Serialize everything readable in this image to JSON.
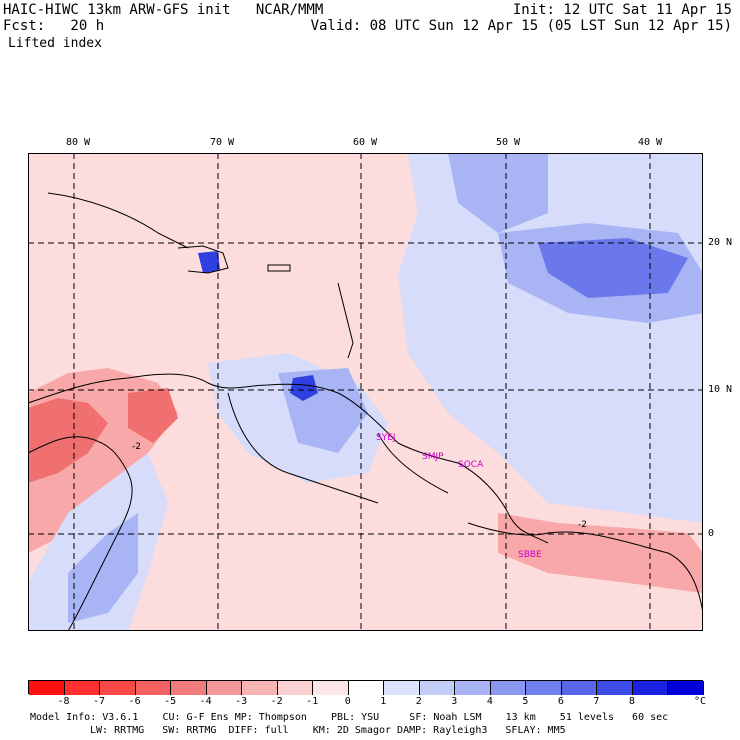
{
  "header": {
    "model_line": "HAIC-HIWC 13km ARW-GFS init   NCAR/MMM",
    "fcst_line": "Fcst:   20 h",
    "field_name": "Lifted index",
    "init_line": "Init: 12 UTC Sat 11 Apr 15",
    "valid_line": "Valid: 08 UTC Sun 12 Apr 15 (05 LST Sun 12 Apr 15)"
  },
  "map": {
    "lon_labels": [
      "80 W",
      "70 W",
      "60 W",
      "50 W",
      "40 W"
    ],
    "lat_labels": [
      "20 N",
      "10 N",
      "0"
    ],
    "stations": [
      "SYEJ",
      "SMJP",
      "SOCA",
      "SBBE"
    ],
    "contour_labels": [
      "-2",
      "-2"
    ],
    "colors": {
      "warm_light": "#fcdcdc",
      "warm_mid": "#f8a8a8",
      "warm_strong": "#f07070",
      "cool_light": "#d6dcfa",
      "cool_mid": "#a8b4f4",
      "cool_strong": "#6a78ec",
      "cool_deep": "#3040e0",
      "station_text": "#d000d0"
    }
  },
  "colorbar": {
    "ticks": [
      "-8",
      "-7",
      "-6",
      "-5",
      "-4",
      "-3",
      "-2",
      "-1",
      "0",
      "1",
      "2",
      "3",
      "4",
      "5",
      "6",
      "7",
      "8"
    ],
    "unit": "°C",
    "colors": [
      "#ff1010",
      "#ff3030",
      "#f84848",
      "#f46262",
      "#f27c7c",
      "#f29898",
      "#f6b4b4",
      "#fad0d0",
      "#fce6e6",
      "#ffffff",
      "#dde2fb",
      "#c4ccf8",
      "#a8b2f4",
      "#8c98f0",
      "#7080ec",
      "#5866ea",
      "#3c4ce6",
      "#1a22e0",
      "#0000d8"
    ]
  },
  "footer": {
    "line1": "Model Info: V3.6.1    CU: G-F Ens MP: Thompson    PBL: YSU     SF: Noah LSM    13 km    51 levels   60 sec",
    "line2": "LW: RRTMG   SW: RRTMG  DIFF: full    KM: 2D Smagor DAMP: Rayleigh3   SFLAY: MM5"
  }
}
